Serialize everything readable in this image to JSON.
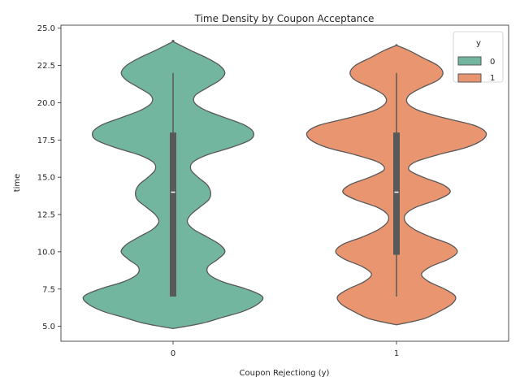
{
  "chart_data": {
    "type": "violin",
    "title": "Time Density by Coupon Acceptance",
    "xlabel": "Coupon Rejectiong (y)",
    "ylabel": "time",
    "categories": [
      "0",
      "1"
    ],
    "ylim": [
      4,
      25.2
    ],
    "yticks": [
      5.0,
      7.5,
      10.0,
      12.5,
      15.0,
      17.5,
      20.0,
      22.5,
      25.0
    ],
    "ytick_labels": [
      "5.0",
      "7.5",
      "10.0",
      "12.5",
      "15.0",
      "17.5",
      "20.0",
      "22.5",
      "25.0"
    ],
    "legend": {
      "title": "y",
      "placement": "top-right",
      "entries": [
        {
          "label": "0",
          "color": "#72b6a0"
        },
        {
          "label": "1",
          "color": "#e9956f"
        }
      ]
    },
    "series": [
      {
        "category": "0",
        "color": "#72b6a0",
        "range": [
          4.85,
          24.1
        ],
        "box": {
          "q1": 7.0,
          "median": 14.0,
          "q3": 18.0,
          "whisker_low": 7.0,
          "whisker_high": 22.0
        },
        "density_profile": [
          [
            4.85,
            0.0
          ],
          [
            5.2,
            0.32
          ],
          [
            5.6,
            0.55
          ],
          [
            6.0,
            0.78
          ],
          [
            6.5,
            0.95
          ],
          [
            7.0,
            1.0
          ],
          [
            7.5,
            0.82
          ],
          [
            8.0,
            0.55
          ],
          [
            8.5,
            0.4
          ],
          [
            9.0,
            0.39
          ],
          [
            9.5,
            0.5
          ],
          [
            10.0,
            0.58
          ],
          [
            10.5,
            0.52
          ],
          [
            11.0,
            0.38
          ],
          [
            11.5,
            0.23
          ],
          [
            12.0,
            0.16
          ],
          [
            12.5,
            0.2
          ],
          [
            13.0,
            0.3
          ],
          [
            13.5,
            0.4
          ],
          [
            14.0,
            0.42
          ],
          [
            14.5,
            0.38
          ],
          [
            15.0,
            0.28
          ],
          [
            15.5,
            0.2
          ],
          [
            16.0,
            0.22
          ],
          [
            16.5,
            0.38
          ],
          [
            17.0,
            0.65
          ],
          [
            17.5,
            0.86
          ],
          [
            18.0,
            0.9
          ],
          [
            18.5,
            0.8
          ],
          [
            19.0,
            0.58
          ],
          [
            19.5,
            0.36
          ],
          [
            20.0,
            0.24
          ],
          [
            20.5,
            0.25
          ],
          [
            21.0,
            0.38
          ],
          [
            21.5,
            0.52
          ],
          [
            22.0,
            0.58
          ],
          [
            22.5,
            0.52
          ],
          [
            23.0,
            0.38
          ],
          [
            23.5,
            0.2
          ],
          [
            24.1,
            0.0
          ]
        ]
      },
      {
        "category": "1",
        "color": "#e9956f",
        "range": [
          5.1,
          23.85
        ],
        "box": {
          "q1": 9.8,
          "median": 14.0,
          "q3": 18.0,
          "whisker_low": 7.0,
          "whisker_high": 22.0
        },
        "density_profile": [
          [
            5.1,
            0.0
          ],
          [
            5.5,
            0.3
          ],
          [
            6.0,
            0.48
          ],
          [
            6.5,
            0.62
          ],
          [
            7.0,
            0.66
          ],
          [
            7.5,
            0.54
          ],
          [
            8.0,
            0.36
          ],
          [
            8.5,
            0.28
          ],
          [
            9.0,
            0.38
          ],
          [
            9.5,
            0.58
          ],
          [
            10.0,
            0.68
          ],
          [
            10.5,
            0.6
          ],
          [
            11.0,
            0.38
          ],
          [
            11.5,
            0.2
          ],
          [
            12.0,
            0.1
          ],
          [
            12.5,
            0.1
          ],
          [
            13.0,
            0.22
          ],
          [
            13.5,
            0.46
          ],
          [
            14.0,
            0.6
          ],
          [
            14.5,
            0.52
          ],
          [
            15.0,
            0.3
          ],
          [
            15.5,
            0.14
          ],
          [
            16.0,
            0.2
          ],
          [
            16.5,
            0.46
          ],
          [
            17.0,
            0.78
          ],
          [
            17.5,
            0.96
          ],
          [
            18.0,
            1.0
          ],
          [
            18.5,
            0.86
          ],
          [
            19.0,
            0.52
          ],
          [
            19.5,
            0.24
          ],
          [
            20.0,
            0.12
          ],
          [
            20.5,
            0.14
          ],
          [
            21.0,
            0.28
          ],
          [
            21.5,
            0.46
          ],
          [
            22.0,
            0.52
          ],
          [
            22.5,
            0.46
          ],
          [
            23.0,
            0.3
          ],
          [
            23.5,
            0.14
          ],
          [
            23.85,
            0.0
          ]
        ]
      }
    ]
  }
}
